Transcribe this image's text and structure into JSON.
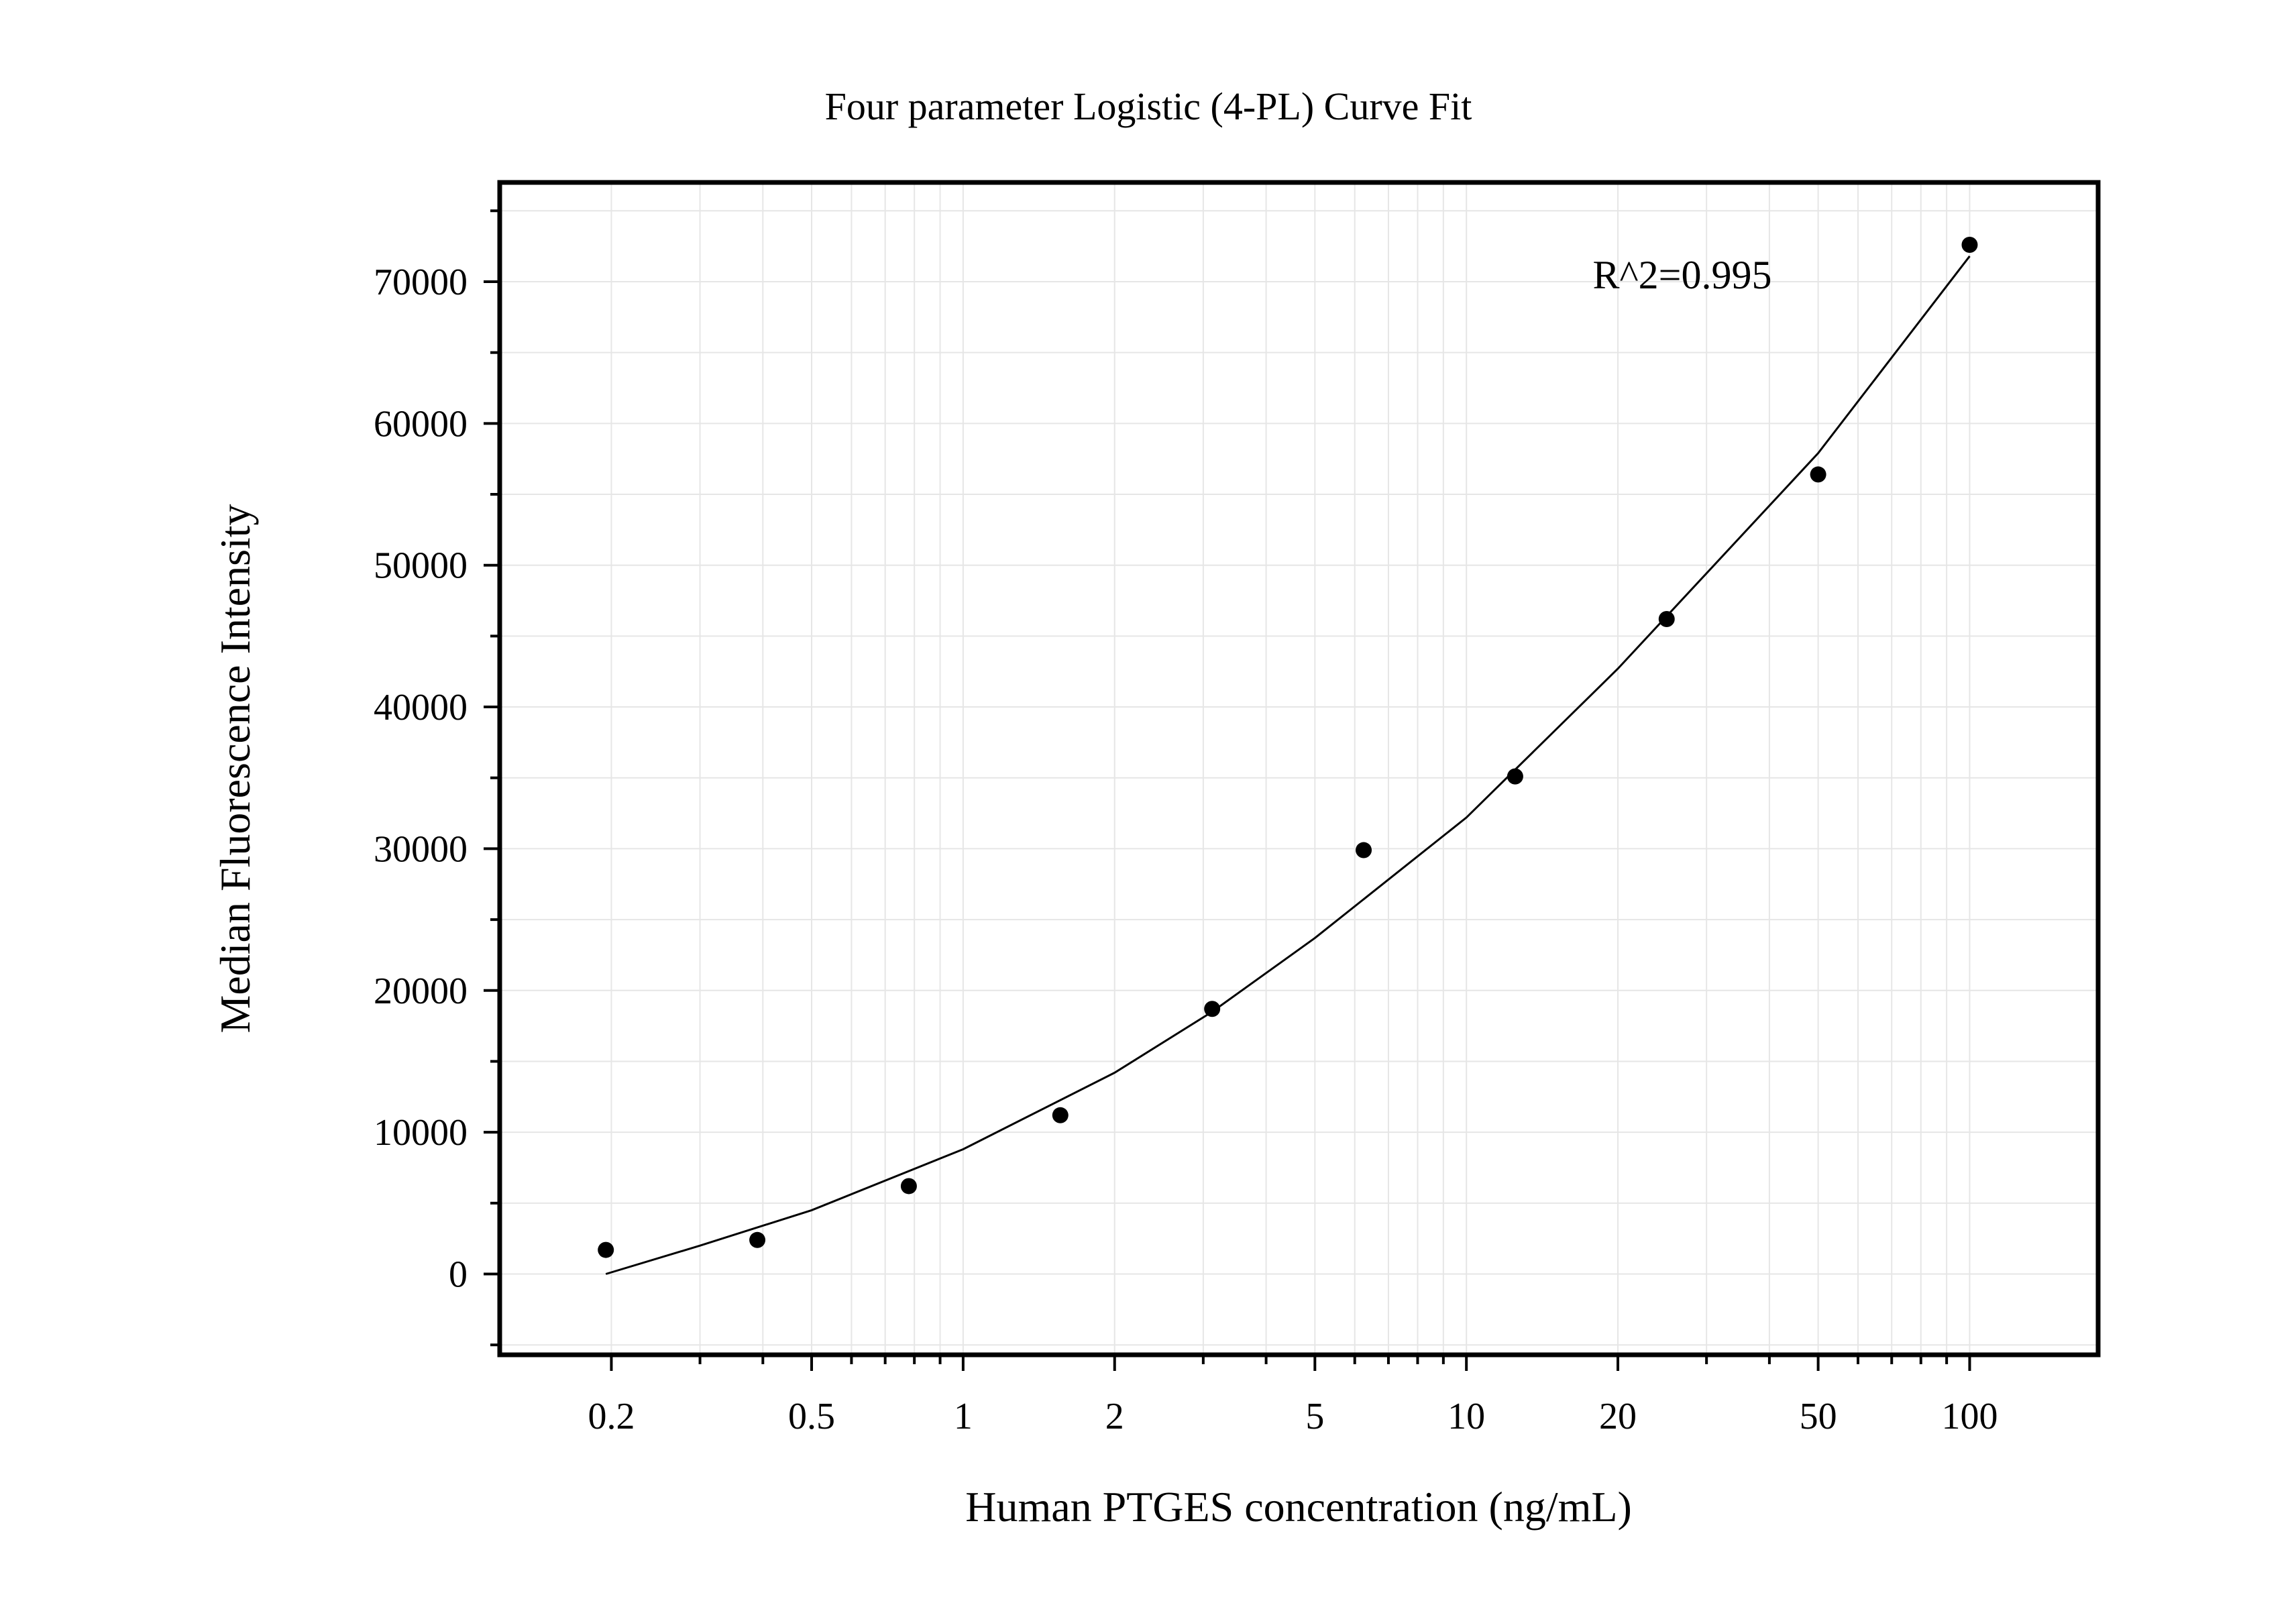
{
  "chart_data": {
    "type": "scatter",
    "title": "Four parameter Logistic (4-PL) Curve Fit",
    "xlabel": "Human PTGES concentration (ng/mL)",
    "ylabel": "Median Fluorescence Intensity",
    "x_scale": "log",
    "xlim": [
      0.12,
      180
    ],
    "ylim": [
      -5700,
      77000
    ],
    "x_ticks": [
      {
        "value": 0.2,
        "label": "0.2"
      },
      {
        "value": 0.5,
        "label": "0.5"
      },
      {
        "value": 1,
        "label": "1"
      },
      {
        "value": 2,
        "label": "2"
      },
      {
        "value": 5,
        "label": "5"
      },
      {
        "value": 10,
        "label": "10"
      },
      {
        "value": 20,
        "label": "20"
      },
      {
        "value": 50,
        "label": "50"
      },
      {
        "value": 100,
        "label": "100"
      }
    ],
    "y_ticks": [
      {
        "value": 0,
        "label": "0"
      },
      {
        "value": 10000,
        "label": "10000"
      },
      {
        "value": 20000,
        "label": "20000"
      },
      {
        "value": 30000,
        "label": "30000"
      },
      {
        "value": 40000,
        "label": "40000"
      },
      {
        "value": 50000,
        "label": "50000"
      },
      {
        "value": 60000,
        "label": "60000"
      },
      {
        "value": 70000,
        "label": "70000"
      }
    ],
    "grid": true,
    "annotation": "R^2=0.995",
    "series": [
      {
        "type": "scatter",
        "color": "#000000",
        "points": [
          {
            "x": 0.195,
            "y": 1700
          },
          {
            "x": 0.39,
            "y": 2400
          },
          {
            "x": 0.78,
            "y": 6200
          },
          {
            "x": 1.56,
            "y": 11200
          },
          {
            "x": 3.125,
            "y": 18700
          },
          {
            "x": 6.25,
            "y": 29900
          },
          {
            "x": 12.5,
            "y": 35100
          },
          {
            "x": 25,
            "y": 46200
          },
          {
            "x": 50,
            "y": 56400
          },
          {
            "x": 100,
            "y": 72600
          }
        ]
      },
      {
        "type": "line",
        "color": "#000000",
        "points": [
          {
            "x": 0.195,
            "y": 0
          },
          {
            "x": 0.3,
            "y": 2000
          },
          {
            "x": 0.5,
            "y": 4500
          },
          {
            "x": 1,
            "y": 8800
          },
          {
            "x": 2,
            "y": 14200
          },
          {
            "x": 3.125,
            "y": 18500
          },
          {
            "x": 5,
            "y": 23700
          },
          {
            "x": 10,
            "y": 32200
          },
          {
            "x": 20,
            "y": 42700
          },
          {
            "x": 50,
            "y": 57900
          },
          {
            "x": 100,
            "y": 71800
          }
        ]
      }
    ]
  }
}
